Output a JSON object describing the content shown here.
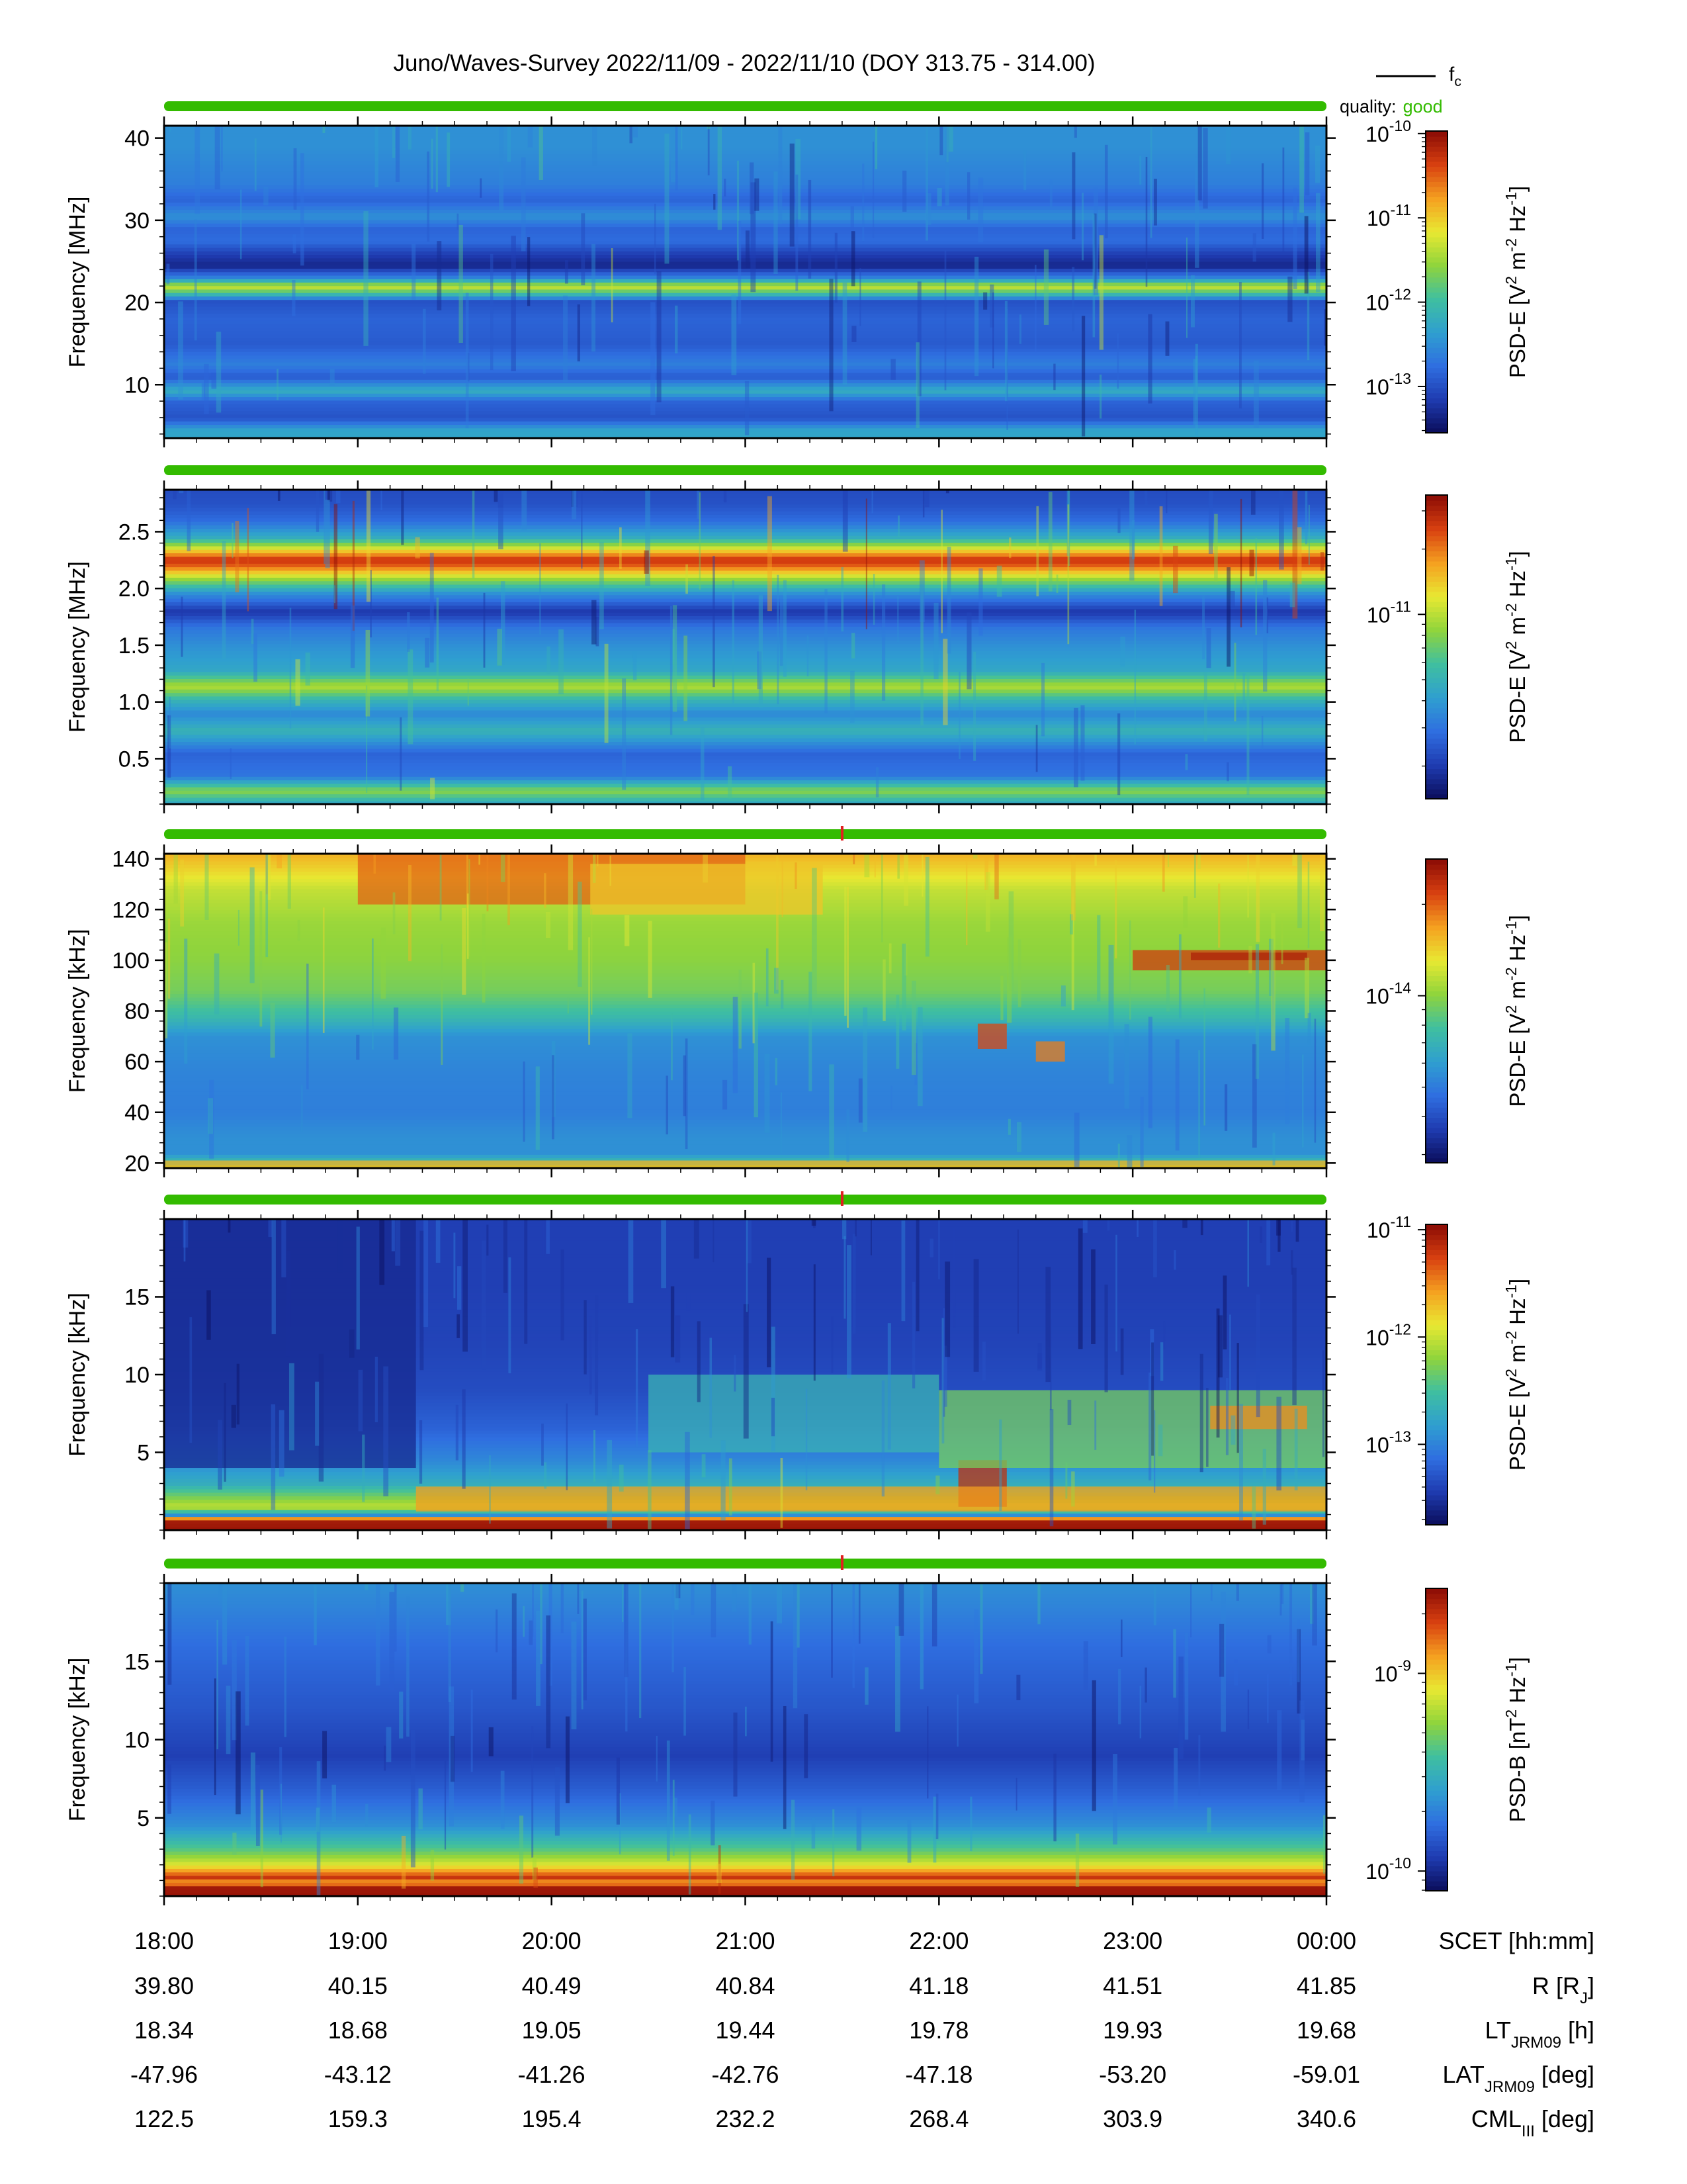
{
  "chart_data": {
    "type": "heatmap",
    "title": "Juno/Waves-Survey  2022/11/09 - 2022/11/10 (DOY 313.75 - 314.00)",
    "legend": {
      "line_label": "f",
      "line_sub": "c",
      "quality_label": "quality:",
      "quality_value": "good",
      "quality_color": "#33bb00",
      "placement": "top-right"
    },
    "colormap": [
      "#0a0d5a",
      "#1f3bb0",
      "#2f6ee0",
      "#2f9fd0",
      "#3fbfa0",
      "#8fd43c",
      "#e8e832",
      "#f5a020",
      "#d84010",
      "#8a0b05"
    ],
    "x_ticks": [
      "18:00",
      "19:00",
      "20:00",
      "21:00",
      "22:00",
      "23:00",
      "00:00"
    ],
    "ephemeris": [
      {
        "label": "SCET [hh:mm]",
        "values": [
          "18:00",
          "19:00",
          "20:00",
          "21:00",
          "22:00",
          "23:00",
          "00:00"
        ]
      },
      {
        "label": "R [R",
        "sub": "J",
        "tail": "]",
        "values": [
          "39.80",
          "40.15",
          "40.49",
          "40.84",
          "41.18",
          "41.51",
          "41.85"
        ]
      },
      {
        "label": "LT",
        "sub": "JRM09",
        "tail": " [h]",
        "values": [
          "18.34",
          "18.68",
          "19.05",
          "19.44",
          "19.78",
          "19.93",
          "19.68"
        ]
      },
      {
        "label": "LAT",
        "sub": "JRM09",
        "tail": " [deg]",
        "values": [
          "-47.96",
          "-43.12",
          "-41.26",
          "-42.76",
          "-47.18",
          "-53.20",
          "-59.01"
        ]
      },
      {
        "label": "CML",
        "sub": "III",
        "tail": " [deg]",
        "values": [
          "122.5",
          "159.3",
          "195.4",
          "232.2",
          "268.4",
          "303.9",
          "340.6"
        ]
      }
    ],
    "panels": [
      {
        "ylabel": "Frequency [MHz]",
        "ylim": [
          3.5,
          41.5
        ],
        "yticks": [
          10,
          20,
          30,
          40
        ],
        "ytick_labels": [
          "10",
          "20",
          "30",
          "40"
        ],
        "cbar_label": "PSD-E [V",
        "cbar_units": "PSD-E [V^2 m^-2 Hz^-1]",
        "cbar_range": [
          -13.55,
          -9.97
        ],
        "cbar_ticks": [
          -13,
          -12,
          -11,
          -10
        ],
        "cbar_tick_labels": [
          "-13",
          "-12",
          "-11",
          "-10"
        ],
        "red_marker": false,
        "spectrum": [
          {
            "f": 4.5,
            "level": 0.35
          },
          {
            "f": 6,
            "level": 0.16
          },
          {
            "f": 8,
            "level": 0.2
          },
          {
            "f": 9.3,
            "level": 0.38
          },
          {
            "f": 11,
            "level": 0.18
          },
          {
            "f": 12.5,
            "level": 0.26
          },
          {
            "f": 15,
            "level": 0.18
          },
          {
            "f": 18,
            "level": 0.2
          },
          {
            "f": 20.2,
            "level": 0.16
          },
          {
            "f": 21,
            "level": 0.4
          },
          {
            "f": 22,
            "level": 0.64
          },
          {
            "f": 23,
            "level": 0.28
          },
          {
            "f": 24.5,
            "level": 0.06
          },
          {
            "f": 26,
            "level": 0.12
          },
          {
            "f": 27.5,
            "level": 0.22
          },
          {
            "f": 29,
            "level": 0.2
          },
          {
            "f": 30.5,
            "level": 0.3
          },
          {
            "f": 32.5,
            "level": 0.2
          },
          {
            "f": 34.5,
            "level": 0.26
          },
          {
            "f": 37,
            "level": 0.28
          },
          {
            "f": 39,
            "level": 0.3
          },
          {
            "f": 41.5,
            "level": 0.3
          }
        ],
        "patches": []
      },
      {
        "ylabel": "Frequency [MHz]",
        "ylim": [
          0.1,
          2.87
        ],
        "yticks": [
          0.5,
          1.0,
          1.5,
          2.0,
          2.5
        ],
        "ytick_labels": [
          "0.5",
          "1.0",
          "1.5",
          "2.0",
          "2.5"
        ],
        "cbar_label": "PSD-E [V",
        "cbar_units": "PSD-E [V^2 m^-2 Hz^-1]",
        "cbar_range": [
          -11.85,
          -10.45
        ],
        "cbar_ticks": [
          -11
        ],
        "cbar_tick_labels": [
          "-11"
        ],
        "red_marker": false,
        "spectrum": [
          {
            "f": 0.1,
            "level": 0.34
          },
          {
            "f": 0.22,
            "level": 0.55
          },
          {
            "f": 0.35,
            "level": 0.24
          },
          {
            "f": 0.55,
            "level": 0.2
          },
          {
            "f": 0.75,
            "level": 0.4
          },
          {
            "f": 0.9,
            "level": 0.28
          },
          {
            "f": 1.02,
            "level": 0.4
          },
          {
            "f": 1.14,
            "level": 0.6
          },
          {
            "f": 1.28,
            "level": 0.36
          },
          {
            "f": 1.5,
            "level": 0.3
          },
          {
            "f": 1.66,
            "level": 0.24
          },
          {
            "f": 1.8,
            "level": 0.1
          },
          {
            "f": 1.96,
            "level": 0.3
          },
          {
            "f": 2.08,
            "level": 0.55
          },
          {
            "f": 2.2,
            "level": 0.85
          },
          {
            "f": 2.26,
            "level": 0.92
          },
          {
            "f": 2.34,
            "level": 0.7
          },
          {
            "f": 2.45,
            "level": 0.38
          },
          {
            "f": 2.6,
            "level": 0.22
          },
          {
            "f": 2.75,
            "level": 0.16
          },
          {
            "f": 2.87,
            "level": 0.15
          }
        ],
        "patches": []
      },
      {
        "ylabel": "Frequency [kHz]",
        "ylim": [
          18,
          142
        ],
        "yticks": [
          20,
          40,
          60,
          80,
          100,
          120,
          140
        ],
        "ytick_labels": [
          "20",
          "40",
          "60",
          "80",
          "100",
          "120",
          "140"
        ],
        "cbar_label": "PSD-E [V",
        "cbar_units": "PSD-E [V^2 m^-2 Hz^-1]",
        "cbar_range": [
          -14.55,
          -13.55
        ],
        "cbar_ticks": [
          -14
        ],
        "cbar_tick_labels": [
          "-14"
        ],
        "red_marker": true,
        "spectrum": [
          {
            "f": 18,
            "level": 0.62
          },
          {
            "f": 20,
            "level": 0.45
          },
          {
            "f": 24,
            "level": 0.3
          },
          {
            "f": 30,
            "level": 0.3
          },
          {
            "f": 40,
            "level": 0.26
          },
          {
            "f": 55,
            "level": 0.27
          },
          {
            "f": 70,
            "level": 0.3
          },
          {
            "f": 78,
            "level": 0.42
          },
          {
            "f": 88,
            "level": 0.52
          },
          {
            "f": 100,
            "level": 0.55
          },
          {
            "f": 115,
            "level": 0.57
          },
          {
            "f": 128,
            "level": 0.62
          },
          {
            "f": 136,
            "level": 0.7
          },
          {
            "f": 142,
            "level": 0.75
          }
        ],
        "patches": [
          {
            "t": [
              19.0,
              21.0
            ],
            "f": [
              122,
              142
            ],
            "level": 0.85
          },
          {
            "t": [
              20.2,
              21.4
            ],
            "f": [
              118,
              138
            ],
            "level": 0.72
          },
          {
            "t": [
              23.0,
              24.0
            ],
            "f": [
              96,
              104
            ],
            "level": 0.9
          },
          {
            "t": [
              23.3,
              23.9
            ],
            "f": [
              100,
              103
            ],
            "level": 0.95
          },
          {
            "t": [
              22.2,
              22.35
            ],
            "f": [
              65,
              75
            ],
            "level": 0.88
          },
          {
            "t": [
              22.5,
              22.65
            ],
            "f": [
              60,
              68
            ],
            "level": 0.82
          },
          {
            "t": [
              18.0,
              24.0
            ],
            "f": [
              18,
              21
            ],
            "level": 0.75
          }
        ]
      },
      {
        "ylabel": "Frequency [kHz]",
        "ylim": [
          0,
          20
        ],
        "yticks": [
          5,
          10,
          15
        ],
        "ytick_labels": [
          "5",
          "10",
          "15"
        ],
        "cbar_label": "PSD-E [V",
        "cbar_units": "PSD-E [V^2 m^-2 Hz^-1]",
        "cbar_range": [
          -13.75,
          -10.95
        ],
        "cbar_ticks": [
          -13,
          -12,
          -11
        ],
        "cbar_tick_labels": [
          "-13",
          "-12",
          "-11"
        ],
        "red_marker": true,
        "spectrum": [
          {
            "f": 0,
            "level": 0.98
          },
          {
            "f": 0.7,
            "level": 0.96
          },
          {
            "f": 1.0,
            "level": 0.3
          },
          {
            "f": 1.5,
            "level": 0.62
          },
          {
            "f": 2.0,
            "level": 0.55
          },
          {
            "f": 3.0,
            "level": 0.38
          },
          {
            "f": 4.5,
            "level": 0.28
          },
          {
            "f": 6.5,
            "level": 0.2
          },
          {
            "f": 9,
            "level": 0.15
          },
          {
            "f": 12,
            "level": 0.13
          },
          {
            "f": 16,
            "level": 0.12
          },
          {
            "f": 20,
            "level": 0.12
          }
        ],
        "patches": [
          {
            "t": [
              18.0,
              19.3
            ],
            "f": [
              4,
              20
            ],
            "level": 0.07
          },
          {
            "t": [
              22.1,
              22.35
            ],
            "f": [
              1.5,
              4.5
            ],
            "level": 0.92
          },
          {
            "t": [
              22.0,
              24.0
            ],
            "f": [
              4,
              9
            ],
            "level": 0.52
          },
          {
            "t": [
              23.4,
              23.9
            ],
            "f": [
              6.5,
              8
            ],
            "level": 0.8
          },
          {
            "t": [
              20.5,
              22.0
            ],
            "f": [
              5,
              10
            ],
            "level": 0.4
          },
          {
            "t": [
              19.3,
              24.0
            ],
            "f": [
              1.2,
              2.8
            ],
            "level": 0.78
          }
        ]
      },
      {
        "ylabel": "Frequency [kHz]",
        "ylim": [
          0,
          20
        ],
        "yticks": [
          5,
          10,
          15
        ],
        "ytick_labels": [
          "5",
          "10",
          "15"
        ],
        "cbar_label": "PSD-B [nT",
        "cbar_units": "PSD-B [nT^2 Hz^-1]",
        "cbar_range": [
          -10.1,
          -8.57
        ],
        "cbar_ticks": [
          -10,
          -9
        ],
        "cbar_tick_labels": [
          "-10",
          "-9"
        ],
        "red_marker": true,
        "spectrum": [
          {
            "f": 0,
            "level": 0.98
          },
          {
            "f": 0.6,
            "level": 0.97
          },
          {
            "f": 0.9,
            "level": 0.75
          },
          {
            "f": 1.2,
            "level": 0.92
          },
          {
            "f": 2.0,
            "level": 0.66
          },
          {
            "f": 3.0,
            "level": 0.48
          },
          {
            "f": 4.5,
            "level": 0.3
          },
          {
            "f": 6.5,
            "level": 0.2
          },
          {
            "f": 9,
            "level": 0.12
          },
          {
            "f": 12,
            "level": 0.17
          },
          {
            "f": 16,
            "level": 0.22
          },
          {
            "f": 20,
            "level": 0.3
          }
        ],
        "patches": []
      }
    ]
  }
}
